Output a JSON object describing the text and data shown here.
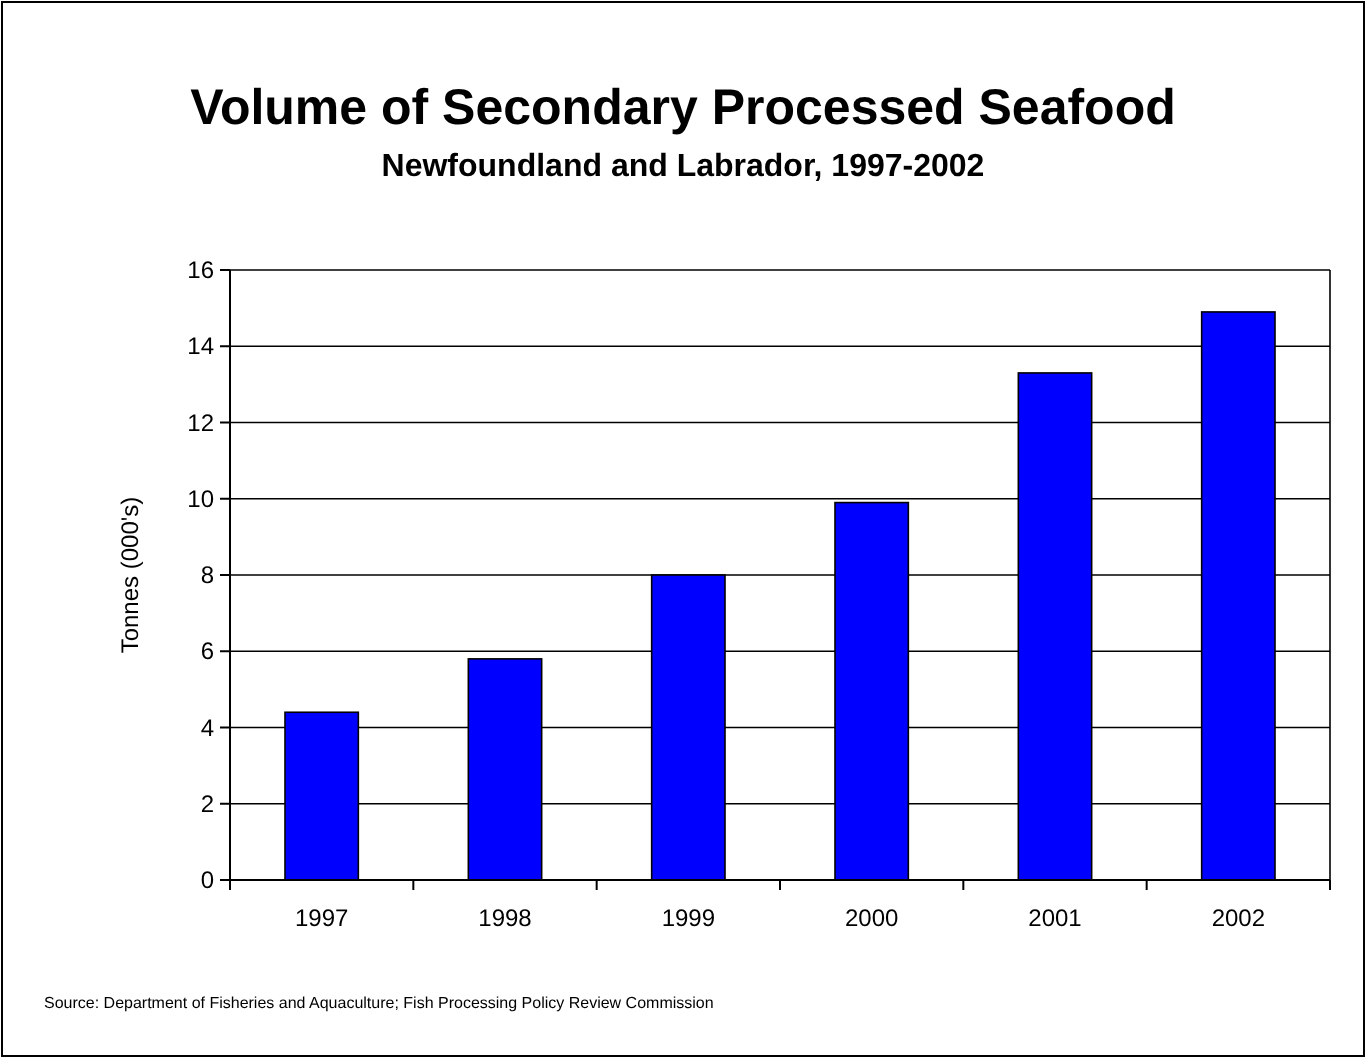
{
  "chart_data": {
    "type": "bar",
    "title": "Volume of Secondary Processed Seafood",
    "subtitle": "Newfoundland and Labrador, 1997-2002",
    "ylabel": "Tonnes (000's)",
    "categories": [
      "1997",
      "1998",
      "1999",
      "2000",
      "2001",
      "2002"
    ],
    "values": [
      4.4,
      5.8,
      8.0,
      9.9,
      13.3,
      14.9
    ],
    "color": "#0000ff",
    "ylim": [
      0,
      16
    ],
    "yticks": [
      0,
      2,
      4,
      6,
      8,
      10,
      12,
      14,
      16
    ],
    "grid": "y",
    "annotations": [
      "Source: Department of Fisheries and Aquaculture; Fish Processing Policy Review Commission"
    ]
  }
}
